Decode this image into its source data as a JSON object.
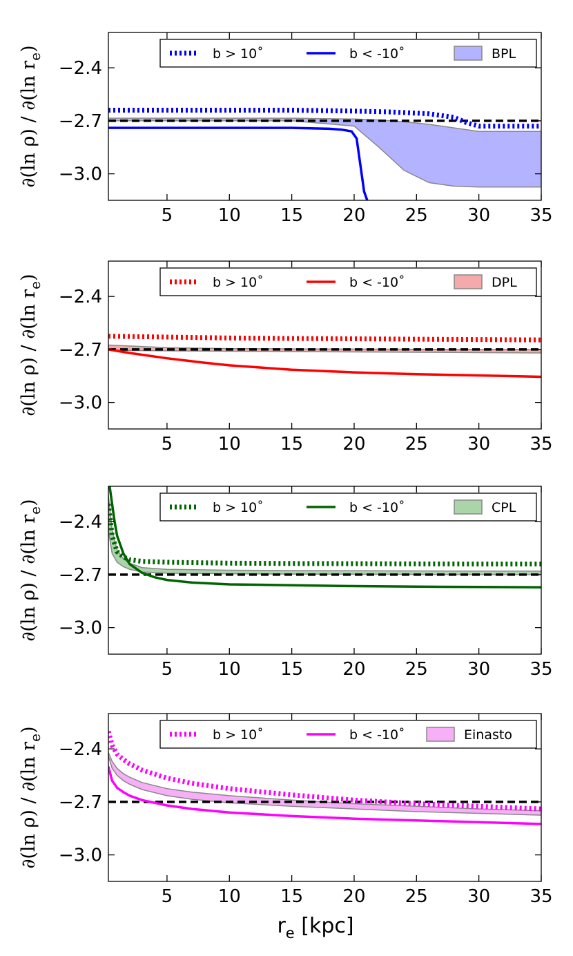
{
  "figure": {
    "xlabel": "r_e [kpc]",
    "xlabel_main": "r",
    "xlabel_sub": "e",
    "xlabel_rest": " [kpc]",
    "ylabel": "∂(ln ρ) / ∂(ln r_e)",
    "ylabel_main": "∂(ln ρ) / ∂(ln r",
    "ylabel_sub": "e",
    "ylabel_close": ")"
  },
  "chart_data": [
    {
      "type": "line",
      "color": "#0000ff",
      "fill": "#b3b3ff",
      "xlim": [
        0.3,
        35
      ],
      "ylim": [
        -3.15,
        -2.2
      ],
      "xticks": [
        5,
        10,
        15,
        20,
        25,
        30,
        35
      ],
      "xtick_labels": [
        "5",
        "10",
        "15",
        "20",
        "25",
        "30",
        "35"
      ],
      "yticks": [
        -2.4,
        -2.7,
        -3.0
      ],
      "ytick_labels": [
        "−2.4",
        "−2.7",
        "−3.0"
      ],
      "reference_line": -2.7,
      "legend": {
        "position": "top",
        "north_label": "b > 10˚",
        "south_label": "b < -10˚",
        "band_label": "BPL"
      },
      "series": [
        {
          "name": "b > 10˚",
          "style": "dotted",
          "x": [
            0.3,
            5,
            10,
            15,
            20,
            23,
            26,
            28,
            29,
            30,
            35
          ],
          "y": [
            -2.64,
            -2.64,
            -2.64,
            -2.64,
            -2.645,
            -2.65,
            -2.66,
            -2.68,
            -2.71,
            -2.73,
            -2.73
          ]
        },
        {
          "name": "b < -10˚",
          "style": "solid",
          "x": [
            0.3,
            5,
            10,
            15,
            18,
            19,
            19.8,
            20.2,
            20.5,
            20.8,
            21.1
          ],
          "y": [
            -2.74,
            -2.74,
            -2.74,
            -2.74,
            -2.745,
            -2.75,
            -2.76,
            -2.8,
            -2.95,
            -3.1,
            -3.16
          ]
        }
      ],
      "band": {
        "name": "BPL",
        "x": [
          0.3,
          5,
          10,
          15,
          20,
          22,
          24,
          26,
          28,
          30,
          35
        ],
        "upper": [
          -2.685,
          -2.685,
          -2.685,
          -2.685,
          -2.69,
          -2.695,
          -2.705,
          -2.72,
          -2.74,
          -2.76,
          -2.76
        ],
        "lower": [
          -2.7,
          -2.7,
          -2.7,
          -2.7,
          -2.73,
          -2.85,
          -2.98,
          -3.05,
          -3.07,
          -3.075,
          -3.075
        ]
      }
    },
    {
      "type": "line",
      "color": "#ff0000",
      "fill": "#f4aaaa",
      "xlim": [
        0.3,
        35
      ],
      "ylim": [
        -3.15,
        -2.2
      ],
      "xticks": [
        5,
        10,
        15,
        20,
        25,
        30,
        35
      ],
      "xtick_labels": [
        "5",
        "10",
        "15",
        "20",
        "25",
        "30",
        "35"
      ],
      "yticks": [
        -2.4,
        -2.7,
        -3.0
      ],
      "ytick_labels": [
        "−2.4",
        "−2.7",
        "−3.0"
      ],
      "reference_line": -2.7,
      "legend": {
        "position": "top",
        "north_label": "b > 10˚",
        "south_label": "b < -10˚",
        "band_label": "DPL"
      },
      "series": [
        {
          "name": "b > 10˚",
          "style": "dotted",
          "x": [
            0.3,
            5,
            10,
            15,
            20,
            25,
            30,
            35
          ],
          "y": [
            -2.625,
            -2.63,
            -2.635,
            -2.638,
            -2.64,
            -2.642,
            -2.644,
            -2.646
          ]
        },
        {
          "name": "b < -10˚",
          "style": "solid",
          "x": [
            0.3,
            2,
            5,
            8,
            10,
            15,
            20,
            25,
            30,
            35
          ],
          "y": [
            -2.7,
            -2.72,
            -2.75,
            -2.775,
            -2.79,
            -2.815,
            -2.83,
            -2.84,
            -2.847,
            -2.855
          ]
        }
      ],
      "band": {
        "name": "DPL",
        "x": [
          0.3,
          5,
          10,
          15,
          20,
          25,
          30,
          35
        ],
        "upper": [
          -2.675,
          -2.69,
          -2.695,
          -2.697,
          -2.698,
          -2.699,
          -2.7,
          -2.7
        ],
        "lower": [
          -2.705,
          -2.708,
          -2.71,
          -2.712,
          -2.714,
          -2.716,
          -2.718,
          -2.72
        ]
      }
    },
    {
      "type": "line",
      "color": "#006400",
      "fill": "#a9d5a9",
      "xlim": [
        0.3,
        35
      ],
      "ylim": [
        -3.15,
        -2.2
      ],
      "xticks": [
        5,
        10,
        15,
        20,
        25,
        30,
        35
      ],
      "xtick_labels": [
        "5",
        "10",
        "15",
        "20",
        "25",
        "30",
        "35"
      ],
      "yticks": [
        -2.4,
        -2.7,
        -3.0
      ],
      "ytick_labels": [
        "−2.4",
        "−2.7",
        "−3.0"
      ],
      "reference_line": -2.7,
      "legend": {
        "position": "top",
        "north_label": "b > 10˚",
        "south_label": "b < -10˚",
        "band_label": "CPL"
      },
      "series": [
        {
          "name": "b > 10˚",
          "style": "dotted",
          "x": [
            0.3,
            0.6,
            1,
            1.5,
            2,
            3,
            5,
            10,
            15,
            20,
            25,
            30,
            35
          ],
          "y": [
            -2.3,
            -2.48,
            -2.57,
            -2.6,
            -2.615,
            -2.625,
            -2.63,
            -2.635,
            -2.637,
            -2.638,
            -2.639,
            -2.64,
            -2.64
          ]
        },
        {
          "name": "b < -10˚",
          "style": "solid",
          "x": [
            0.4,
            0.6,
            0.8,
            1,
            1.5,
            2,
            3,
            4,
            5,
            7,
            10,
            15,
            20,
            25,
            30,
            35
          ],
          "y": [
            -2.2,
            -2.3,
            -2.4,
            -2.48,
            -2.58,
            -2.64,
            -2.69,
            -2.715,
            -2.73,
            -2.745,
            -2.755,
            -2.76,
            -2.765,
            -2.768,
            -2.77,
            -2.772
          ]
        }
      ],
      "band": {
        "name": "CPL",
        "x": [
          0.3,
          0.6,
          1,
          1.5,
          2,
          3,
          5,
          10,
          15,
          20,
          25,
          30,
          35
        ],
        "upper": [
          -2.25,
          -2.45,
          -2.56,
          -2.61,
          -2.635,
          -2.66,
          -2.67,
          -2.675,
          -2.677,
          -2.678,
          -2.679,
          -2.68,
          -2.68
        ],
        "lower": [
          -2.45,
          -2.58,
          -2.63,
          -2.655,
          -2.67,
          -2.685,
          -2.692,
          -2.695,
          -2.697,
          -2.698,
          -2.699,
          -2.7,
          -2.7
        ]
      }
    },
    {
      "type": "line",
      "color": "#ff00ff",
      "fill": "#f7b0f7",
      "xlim": [
        0.3,
        35
      ],
      "ylim": [
        -3.15,
        -2.2
      ],
      "xticks": [
        5,
        10,
        15,
        20,
        25,
        30,
        35
      ],
      "xtick_labels": [
        "5",
        "10",
        "15",
        "20",
        "25",
        "30",
        "35"
      ],
      "yticks": [
        -2.4,
        -2.7,
        -3.0
      ],
      "ytick_labels": [
        "−2.4",
        "−2.7",
        "−3.0"
      ],
      "reference_line": -2.7,
      "legend": {
        "position": "top",
        "north_label": "b > 10˚",
        "south_label": "b < -10˚",
        "band_label": "Einasto"
      },
      "series": [
        {
          "name": "b > 10˚",
          "style": "dotted",
          "x": [
            0.3,
            0.6,
            1,
            1.5,
            2,
            3,
            5,
            7,
            10,
            15,
            20,
            25,
            30,
            35
          ],
          "y": [
            -2.3,
            -2.38,
            -2.43,
            -2.46,
            -2.485,
            -2.52,
            -2.565,
            -2.595,
            -2.625,
            -2.66,
            -2.69,
            -2.71,
            -2.725,
            -2.74
          ]
        },
        {
          "name": "b < -10˚",
          "style": "solid",
          "x": [
            0.3,
            0.6,
            1,
            1.5,
            2,
            3,
            5,
            7,
            10,
            15,
            20,
            25,
            30,
            35
          ],
          "y": [
            -2.5,
            -2.58,
            -2.62,
            -2.645,
            -2.665,
            -2.69,
            -2.72,
            -2.74,
            -2.76,
            -2.78,
            -2.795,
            -2.805,
            -2.815,
            -2.825
          ]
        }
      ],
      "band": {
        "name": "Einasto",
        "x": [
          0.3,
          0.6,
          1,
          1.5,
          2,
          3,
          5,
          7,
          10,
          15,
          20,
          25,
          30,
          35
        ],
        "upper": [
          -2.42,
          -2.47,
          -2.51,
          -2.54,
          -2.56,
          -2.59,
          -2.625,
          -2.645,
          -2.665,
          -2.69,
          -2.71,
          -2.725,
          -2.74,
          -2.75
        ],
        "lower": [
          -2.44,
          -2.51,
          -2.55,
          -2.58,
          -2.6,
          -2.63,
          -2.665,
          -2.685,
          -2.705,
          -2.725,
          -2.74,
          -2.755,
          -2.765,
          -2.775
        ]
      }
    }
  ]
}
